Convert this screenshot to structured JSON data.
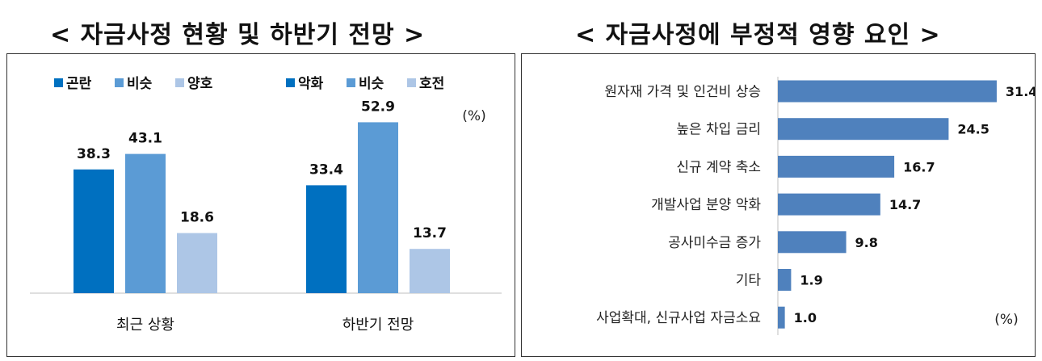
{
  "titles": {
    "left": "< 자금사정 현황 및 하반기 전망 >",
    "right": "< 자금사정에 부정적 영향 요인 >"
  },
  "chart_data": [
    {
      "type": "bar",
      "unit": "(%)",
      "groups": [
        {
          "label": "최근 상황",
          "legend": [
            {
              "name": "곤란",
              "color": "#0070C0"
            },
            {
              "name": "비슷",
              "color": "#5B9BD5"
            },
            {
              "name": "양호",
              "color": "#ADC6E6"
            }
          ],
          "values": [
            38.3,
            43.1,
            18.6
          ]
        },
        {
          "label": "하반기 전망",
          "legend": [
            {
              "name": "악화",
              "color": "#0070C0"
            },
            {
              "name": "비슷",
              "color": "#5B9BD5"
            },
            {
              "name": "호전",
              "color": "#ADC6E6"
            }
          ],
          "values": [
            33.4,
            52.9,
            13.7
          ]
        }
      ],
      "ylim": [
        0,
        60
      ]
    },
    {
      "type": "bar",
      "orientation": "horizontal",
      "unit": "(%)",
      "color": "#4F81BD",
      "categories": [
        "원자재 가격 및 인건비 상승",
        "높은 차입 금리",
        "신규 계약 축소",
        "개발사업 분양 악화",
        "공사미수금 증가",
        "기타",
        "사업확대, 신규사업 자금소요"
      ],
      "values": [
        31.4,
        24.5,
        16.7,
        14.7,
        9.8,
        1.9,
        1.0
      ],
      "xlim": [
        0,
        35
      ]
    }
  ]
}
